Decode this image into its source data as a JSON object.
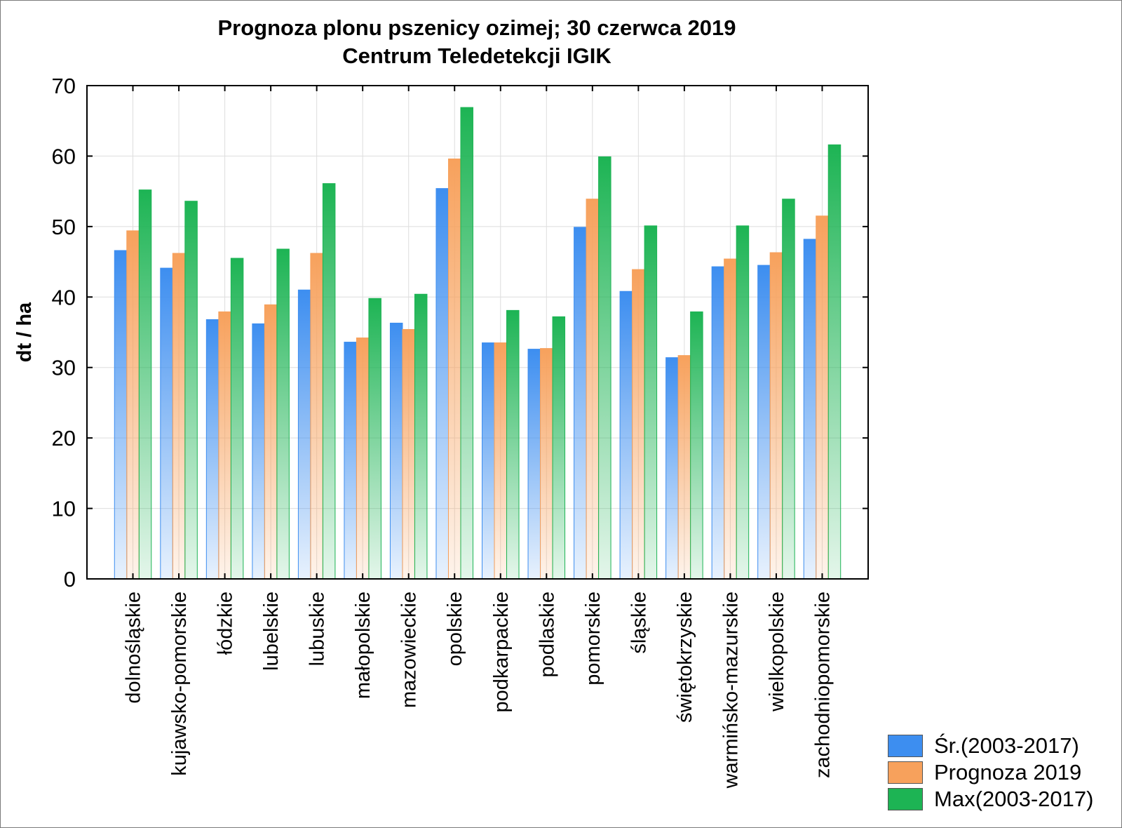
{
  "chart_data": {
    "type": "bar",
    "title": "Prognoza plonu pszenicy ozimej; 30 czerwca 2019",
    "subtitle": "Centrum Teledetekcji IGIK",
    "xlabel": "",
    "ylabel": "dt / ha",
    "ylim": [
      0,
      70
    ],
    "yticks": [
      0,
      10,
      20,
      30,
      40,
      50,
      60,
      70
    ],
    "grid": true,
    "legend_position": "bottom-right",
    "categories": [
      "dolnośląskie",
      "kujawsko-pomorskie",
      "łódzkie",
      "lubelskie",
      "lubuskie",
      "małopolskie",
      "mazowieckie",
      "opolskie",
      "podkarpackie",
      "podlaskie",
      "pomorskie",
      "śląskie",
      "świętokrzyskie",
      "warmińsko-mazurskie",
      "wielkopolskie",
      "zachodniopomorskie"
    ],
    "series": [
      {
        "name": "Śr.(2003-2017)",
        "color": "#3d8ef0",
        "values": [
          46.6,
          44.1,
          36.8,
          36.2,
          41.0,
          33.6,
          36.3,
          55.4,
          33.5,
          32.6,
          49.9,
          40.8,
          31.4,
          44.3,
          44.5,
          48.2
        ]
      },
      {
        "name": "Prognoza 2019",
        "color": "#f7a15c",
        "values": [
          49.4,
          46.2,
          37.9,
          38.9,
          46.2,
          34.2,
          35.4,
          59.6,
          33.5,
          32.7,
          53.9,
          43.9,
          31.7,
          45.4,
          46.3,
          51.5
        ]
      },
      {
        "name": "Max(2003-2017)",
        "color": "#1db454",
        "values": [
          55.2,
          53.6,
          45.5,
          46.8,
          56.1,
          39.8,
          40.4,
          66.9,
          38.1,
          37.2,
          59.9,
          50.1,
          37.9,
          50.1,
          53.9,
          61.6
        ]
      }
    ]
  }
}
